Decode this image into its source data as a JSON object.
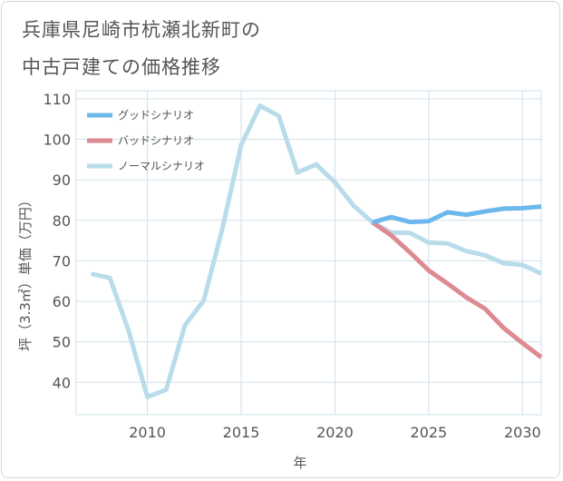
{
  "title_lines": [
    "兵庫県尼崎市杭瀬北新町の",
    "中古戸建ての価格推移"
  ],
  "chart_data": {
    "type": "line",
    "xlabel": "年",
    "ylabel": "坪（3.3㎡）単価（万円）",
    "xlim": [
      2006.2,
      2031
    ],
    "ylim": [
      32,
      112
    ],
    "xticks": [
      2010,
      2015,
      2020,
      2025,
      2030
    ],
    "yticks": [
      40,
      50,
      60,
      70,
      80,
      90,
      100,
      110
    ],
    "grid": true,
    "legend_position": "top-left",
    "series": [
      {
        "name": "グッドシナリオ",
        "color": "#6cb8ec",
        "x": [
          2022,
          2023,
          2024,
          2025,
          2026,
          2027,
          2028,
          2029,
          2030,
          2031
        ],
        "y": [
          79.5,
          80.8,
          79.6,
          79.8,
          82.0,
          81.4,
          82.2,
          82.9,
          83.0,
          83.4
        ]
      },
      {
        "name": "バッドシナリオ",
        "color": "#de8a91",
        "x": [
          2022,
          2023,
          2024,
          2025,
          2026,
          2027,
          2028,
          2029,
          2030,
          2031
        ],
        "y": [
          79.5,
          76.3,
          72.1,
          67.6,
          64.4,
          61.0,
          58.2,
          53.4,
          49.7,
          46.2
        ]
      },
      {
        "name": "ノーマルシナリオ",
        "color": "#b9dcea",
        "x": [
          2007,
          2008,
          2009,
          2010,
          2011,
          2012,
          2013,
          2014,
          2015,
          2016,
          2017,
          2018,
          2019,
          2020,
          2021,
          2022,
          2023,
          2024,
          2025,
          2026,
          2027,
          2028,
          2029,
          2030,
          2031
        ],
        "y": [
          66.8,
          65.8,
          52.7,
          36.4,
          38.2,
          54.1,
          60.2,
          78.0,
          98.6,
          108.3,
          105.8,
          91.8,
          93.8,
          89.4,
          83.6,
          79.5,
          77.0,
          76.9,
          74.5,
          74.3,
          72.4,
          71.4,
          69.4,
          69.0,
          66.9
        ]
      }
    ]
  }
}
